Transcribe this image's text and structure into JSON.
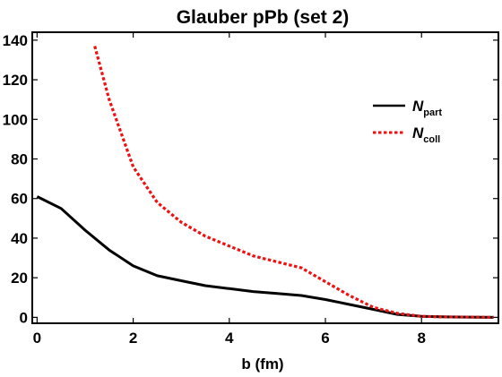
{
  "chart_data": {
    "type": "line",
    "title": "Glauber pPb (set 2)",
    "xlabel": "b (fm)",
    "ylabel": "",
    "xlim": [
      -0.1,
      9.6
    ],
    "ylim": [
      -3,
      144
    ],
    "xticks": [
      0,
      2,
      4,
      6,
      8
    ],
    "yticks": [
      0,
      20,
      40,
      60,
      80,
      100,
      120,
      140
    ],
    "grid": false,
    "legend_position": "top-right",
    "series": [
      {
        "name": "N",
        "subscript": "part",
        "color": "#000000",
        "style": "solid",
        "x": [
          0,
          0.5,
          1.0,
          1.5,
          2.0,
          2.5,
          3.0,
          3.5,
          4.0,
          4.5,
          5.0,
          5.5,
          6.0,
          6.5,
          7.0,
          7.5,
          8.0,
          8.5,
          9.0,
          9.5
        ],
        "y": [
          61,
          55,
          44,
          34,
          26,
          21,
          18.5,
          16,
          14.5,
          13,
          12,
          11,
          9,
          6.5,
          4,
          1.5,
          0.5,
          0.2,
          0.1,
          0
        ]
      },
      {
        "name": "N",
        "subscript": "coll",
        "color": "#ee1111",
        "style": "dotted",
        "x": [
          1.2,
          1.5,
          2.0,
          2.5,
          3.0,
          3.5,
          4.0,
          4.5,
          5.0,
          5.5,
          6.0,
          6.5,
          7.0,
          7.5,
          8.0,
          8.5,
          9.0,
          9.5
        ],
        "y": [
          137,
          110,
          76,
          58,
          48,
          41,
          36,
          31,
          28,
          25,
          18,
          11,
          5,
          2,
          0.5,
          0.2,
          0.1,
          0
        ]
      }
    ]
  }
}
